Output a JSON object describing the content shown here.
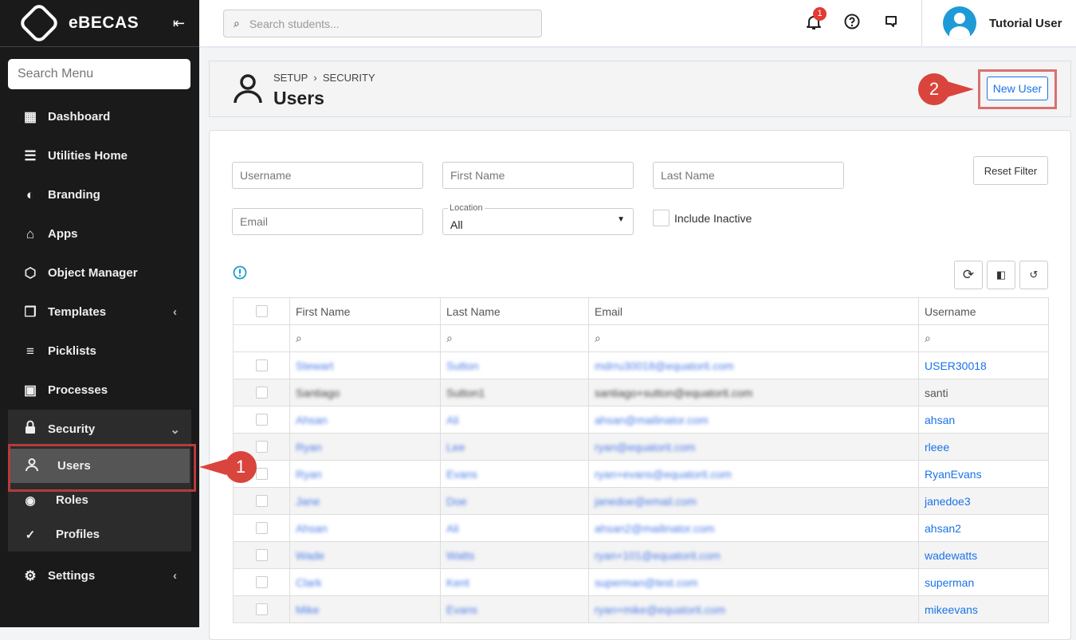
{
  "sidebar": {
    "brand": "eBECAS",
    "search_placeholder": "Search Menu",
    "items": [
      {
        "label": "Dashboard",
        "icon": "dashboard-icon"
      },
      {
        "label": "Utilities Home",
        "icon": "sliders-icon"
      },
      {
        "label": "Branding",
        "icon": "palette-icon"
      },
      {
        "label": "Apps",
        "icon": "store-icon"
      },
      {
        "label": "Object Manager",
        "icon": "cube-icon"
      },
      {
        "label": "Templates",
        "icon": "window-icon"
      },
      {
        "label": "Picklists",
        "icon": "list-icon"
      },
      {
        "label": "Processes",
        "icon": "chip-icon"
      }
    ],
    "security": {
      "label": "Security",
      "sub": [
        "Users",
        "Roles",
        "Profiles"
      ]
    },
    "settings": "Settings"
  },
  "topbar": {
    "search_placeholder": "Search students...",
    "notification_count": "1",
    "user": "Tutorial User"
  },
  "header": {
    "crumb1": "SETUP",
    "crumb2": "SECURITY",
    "title": "Users",
    "new_user": "New User"
  },
  "annotations": {
    "step1": "1",
    "step2": "2"
  },
  "filters": {
    "username": "Username",
    "first_name": "First Name",
    "last_name": "Last Name",
    "email": "Email",
    "location_label": "Location",
    "location_value": "All",
    "include_inactive": "Include Inactive",
    "reset": "Reset Filter"
  },
  "table": {
    "headers": [
      "First Name",
      "Last Name",
      "Email",
      "Username"
    ],
    "rows": [
      [
        "Stewart",
        "Sutton",
        "mdrru30018@equatorit.com",
        "USER30018"
      ],
      [
        "Santiago",
        "Sutton1",
        "santiago+sutton@equatorit.com",
        "santi"
      ],
      [
        "Ahsan",
        "Ali",
        "ahsan@mailinator.com",
        "ahsan"
      ],
      [
        "Ryan",
        "Lee",
        "ryan@equatorit.com",
        "rleee"
      ],
      [
        "Ryan",
        "Evans",
        "ryan+evans@equatorit.com",
        "RyanEvans"
      ],
      [
        "Jane",
        "Doe",
        "janedoe@email.com",
        "janedoe3"
      ],
      [
        "Ahsan",
        "Ali",
        "ahsan2@mailinator.com",
        "ahsan2"
      ],
      [
        "Wade",
        "Watts",
        "ryan+101@equatorit.com",
        "wadewatts"
      ],
      [
        "Clark",
        "Kent",
        "superman@test.com",
        "superman"
      ],
      [
        "Mike",
        "Evans",
        "ryan+mike@equatorit.com",
        "mikeevans"
      ]
    ]
  }
}
